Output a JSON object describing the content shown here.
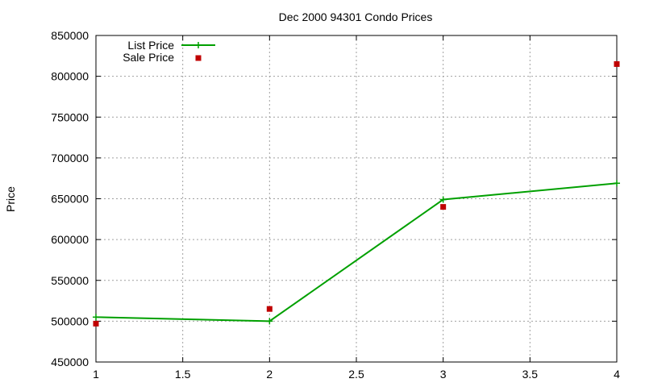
{
  "chart_data": {
    "type": "line",
    "title": "Dec 2000 94301 Condo Prices",
    "xlabel": "",
    "ylabel": "Price",
    "xlim": [
      1,
      4
    ],
    "ylim": [
      450000,
      850000
    ],
    "x_ticks": [
      "1",
      "1.5",
      "2",
      "2.5",
      "3",
      "3.5",
      "4"
    ],
    "y_ticks": [
      "450000",
      "500000",
      "550000",
      "600000",
      "650000",
      "700000",
      "750000",
      "800000",
      "850000"
    ],
    "grid": true,
    "legend_position": "top-left",
    "series": [
      {
        "name": "List Price",
        "kind": "line-with-cross-markers",
        "color": "#00a000",
        "x": [
          1,
          2,
          3,
          4
        ],
        "y": [
          505000,
          500000,
          649000,
          669000
        ]
      },
      {
        "name": "Sale Price",
        "kind": "square-markers",
        "color": "#c00000",
        "x": [
          1,
          2,
          3,
          4
        ],
        "y": [
          497000,
          515000,
          640000,
          815000
        ]
      }
    ]
  }
}
